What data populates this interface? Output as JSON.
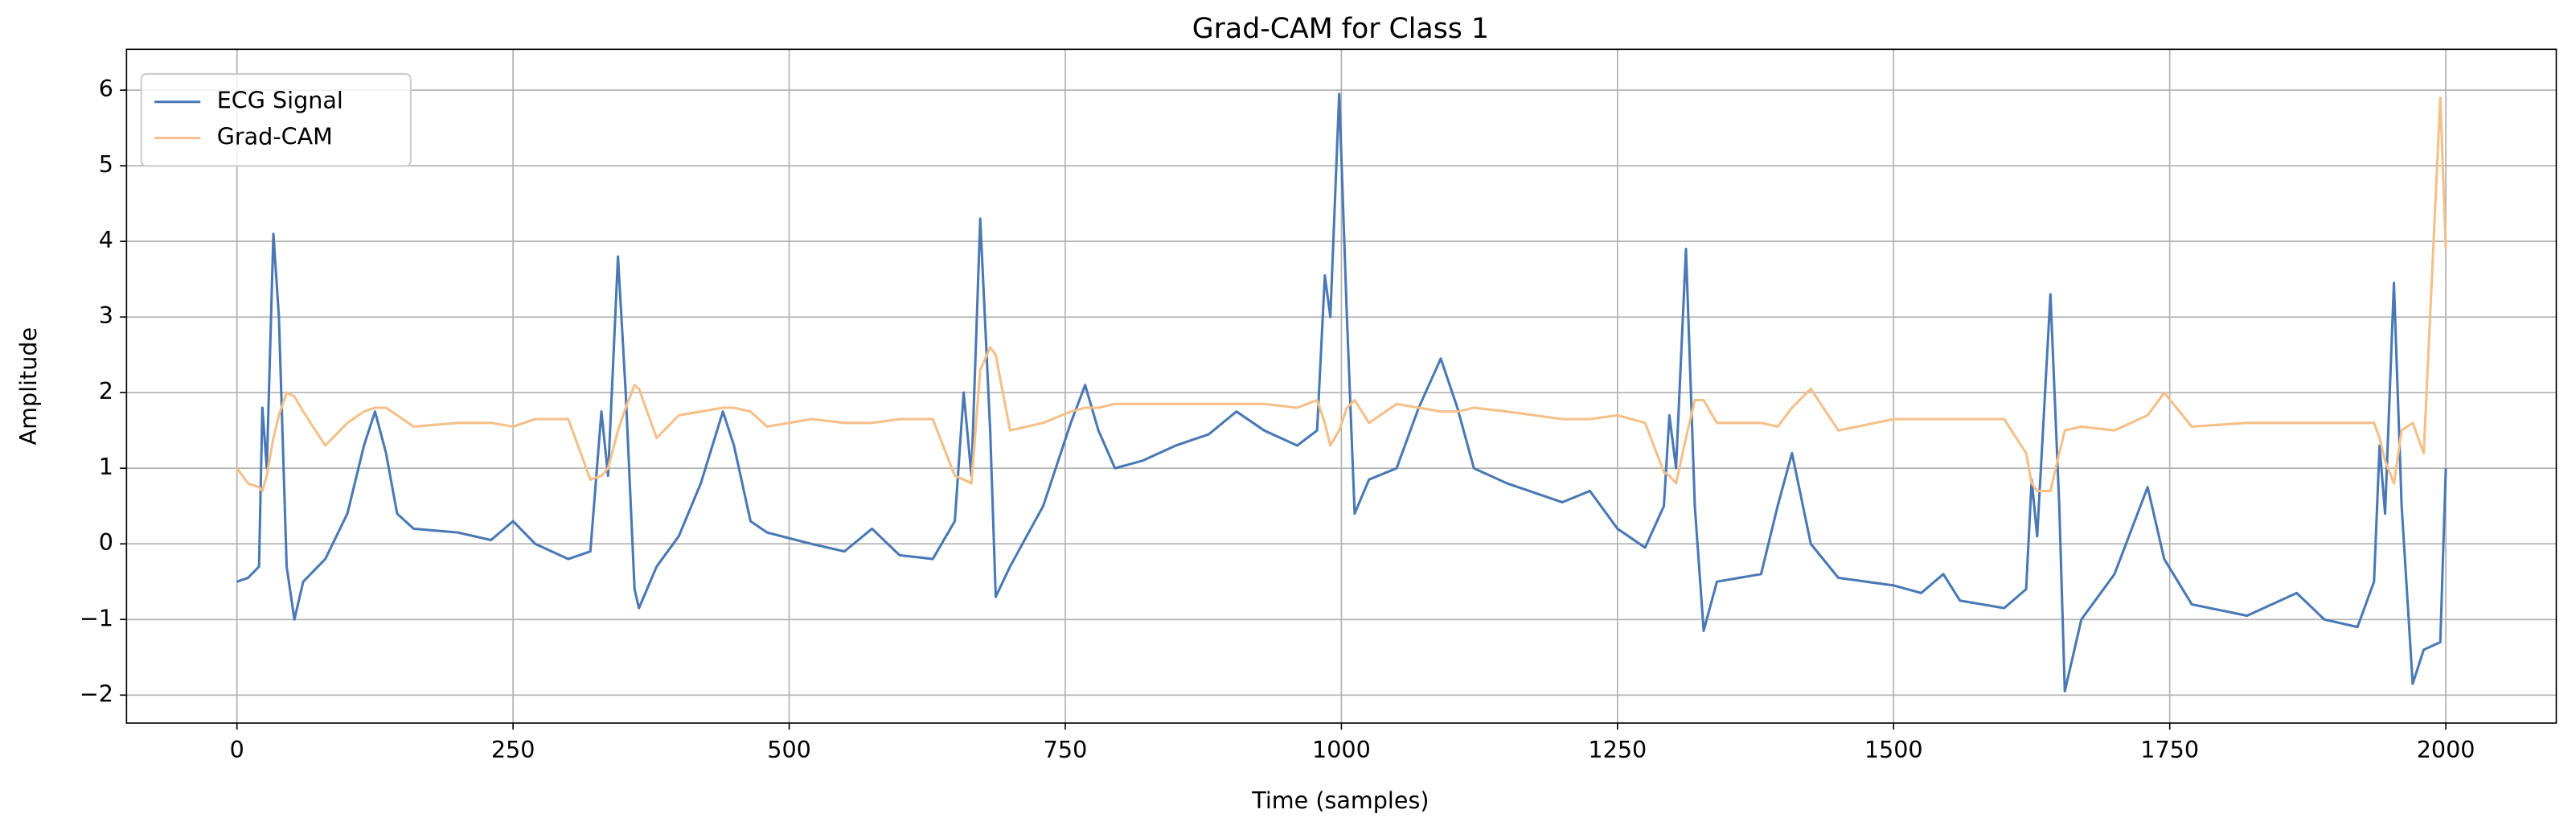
{
  "chart_data": {
    "type": "line",
    "title": "Grad-CAM for Class 1",
    "xlabel": "Time (samples)",
    "ylabel": "Amplitude",
    "x": [
      0,
      10,
      20,
      23,
      27,
      33,
      38,
      45,
      52,
      60,
      80,
      100,
      115,
      125,
      135,
      145,
      160,
      200,
      230,
      250,
      270,
      300,
      320,
      330,
      336,
      345,
      352,
      360,
      364,
      380,
      400,
      420,
      440,
      450,
      465,
      480,
      520,
      550,
      575,
      600,
      630,
      650,
      658,
      665,
      673,
      682,
      687,
      700,
      730,
      755,
      768,
      780,
      795,
      820,
      850,
      880,
      905,
      930,
      960,
      978,
      985,
      990,
      998,
      1005,
      1012,
      1025,
      1050,
      1070,
      1090,
      1105,
      1120,
      1150,
      1200,
      1225,
      1250,
      1275,
      1292,
      1297,
      1303,
      1312,
      1320,
      1328,
      1340,
      1380,
      1395,
      1408,
      1425,
      1450,
      1500,
      1525,
      1545,
      1560,
      1600,
      1620,
      1625,
      1630,
      1642,
      1650,
      1655,
      1670,
      1700,
      1730,
      1745,
      1770,
      1820,
      1865,
      1890,
      1920,
      1935,
      1940,
      1945,
      1953,
      1960,
      1970,
      1980,
      1995,
      2000
    ],
    "series": [
      {
        "name": "ECG Signal",
        "color": "#4a78b4",
        "values": [
          -0.5,
          -0.45,
          -0.3,
          1.8,
          1.0,
          4.1,
          3.0,
          -0.3,
          -1.0,
          -0.5,
          -0.2,
          0.4,
          1.3,
          1.75,
          1.2,
          0.4,
          0.2,
          0.15,
          0.05,
          0.3,
          0.0,
          -0.2,
          -0.1,
          1.75,
          0.9,
          3.8,
          2.0,
          -0.6,
          -0.85,
          -0.3,
          0.1,
          0.8,
          1.75,
          1.3,
          0.3,
          0.15,
          0.0,
          -0.1,
          0.2,
          -0.15,
          -0.2,
          0.3,
          2.0,
          0.9,
          4.3,
          1.5,
          -0.7,
          -0.3,
          0.5,
          1.6,
          2.1,
          1.5,
          1.0,
          1.1,
          1.3,
          1.45,
          1.75,
          1.5,
          1.3,
          1.5,
          3.55,
          3.0,
          5.95,
          3.0,
          0.4,
          0.85,
          1.0,
          1.8,
          2.45,
          1.8,
          1.0,
          0.8,
          0.55,
          0.7,
          0.2,
          -0.05,
          0.5,
          1.7,
          1.0,
          3.9,
          0.5,
          -1.15,
          -0.5,
          -0.4,
          0.5,
          1.2,
          0.0,
          -0.45,
          -0.55,
          -0.65,
          -0.4,
          -0.75,
          -0.85,
          -0.6,
          0.85,
          0.1,
          3.3,
          0.5,
          -1.95,
          -1.0,
          -0.4,
          0.75,
          -0.2,
          -0.8,
          -0.95,
          -0.65,
          -1.0,
          -1.1,
          -0.5,
          1.3,
          0.4,
          3.45,
          0.5,
          -1.85,
          -1.4,
          -1.3,
          1.0
        ]
      },
      {
        "name": "Grad-CAM",
        "color": "#f5bf88",
        "values": [
          1.0,
          0.8,
          0.75,
          0.7,
          0.9,
          1.4,
          1.7,
          2.0,
          1.95,
          1.75,
          1.3,
          1.6,
          1.75,
          1.8,
          1.8,
          1.7,
          1.55,
          1.6,
          1.6,
          1.55,
          1.65,
          1.65,
          0.85,
          0.9,
          1.0,
          1.5,
          1.8,
          2.1,
          2.05,
          1.4,
          1.7,
          1.75,
          1.8,
          1.8,
          1.75,
          1.55,
          1.65,
          1.6,
          1.6,
          1.65,
          1.65,
          0.9,
          0.85,
          0.8,
          2.3,
          2.6,
          2.5,
          1.5,
          1.6,
          1.75,
          1.8,
          1.8,
          1.85,
          1.85,
          1.85,
          1.85,
          1.85,
          1.85,
          1.8,
          1.9,
          1.6,
          1.3,
          1.5,
          1.8,
          1.9,
          1.6,
          1.85,
          1.8,
          1.75,
          1.75,
          1.8,
          1.75,
          1.65,
          1.65,
          1.7,
          1.6,
          0.95,
          0.9,
          0.8,
          1.4,
          1.9,
          1.9,
          1.6,
          1.6,
          1.55,
          1.8,
          2.05,
          1.5,
          1.65,
          1.65,
          1.65,
          1.65,
          1.65,
          1.2,
          0.8,
          0.7,
          0.7,
          1.2,
          1.5,
          1.55,
          1.5,
          1.7,
          2.0,
          1.55,
          1.6,
          1.6,
          1.6,
          1.6,
          1.6,
          1.4,
          1.1,
          0.8,
          1.5,
          1.6,
          1.2,
          5.9,
          3.9
        ]
      }
    ],
    "xlim": [
      -100,
      2100
    ],
    "xticks": [
      0,
      250,
      500,
      750,
      1000,
      1250,
      1500,
      1750,
      2000
    ],
    "ylim": [
      -2.37,
      6.54
    ],
    "yticks": [
      {
        "value": -2,
        "label": "−2"
      },
      {
        "value": -1,
        "label": "−1"
      },
      0,
      1,
      2,
      3,
      4,
      5,
      6
    ],
    "grid": true,
    "legend": "upper left"
  }
}
